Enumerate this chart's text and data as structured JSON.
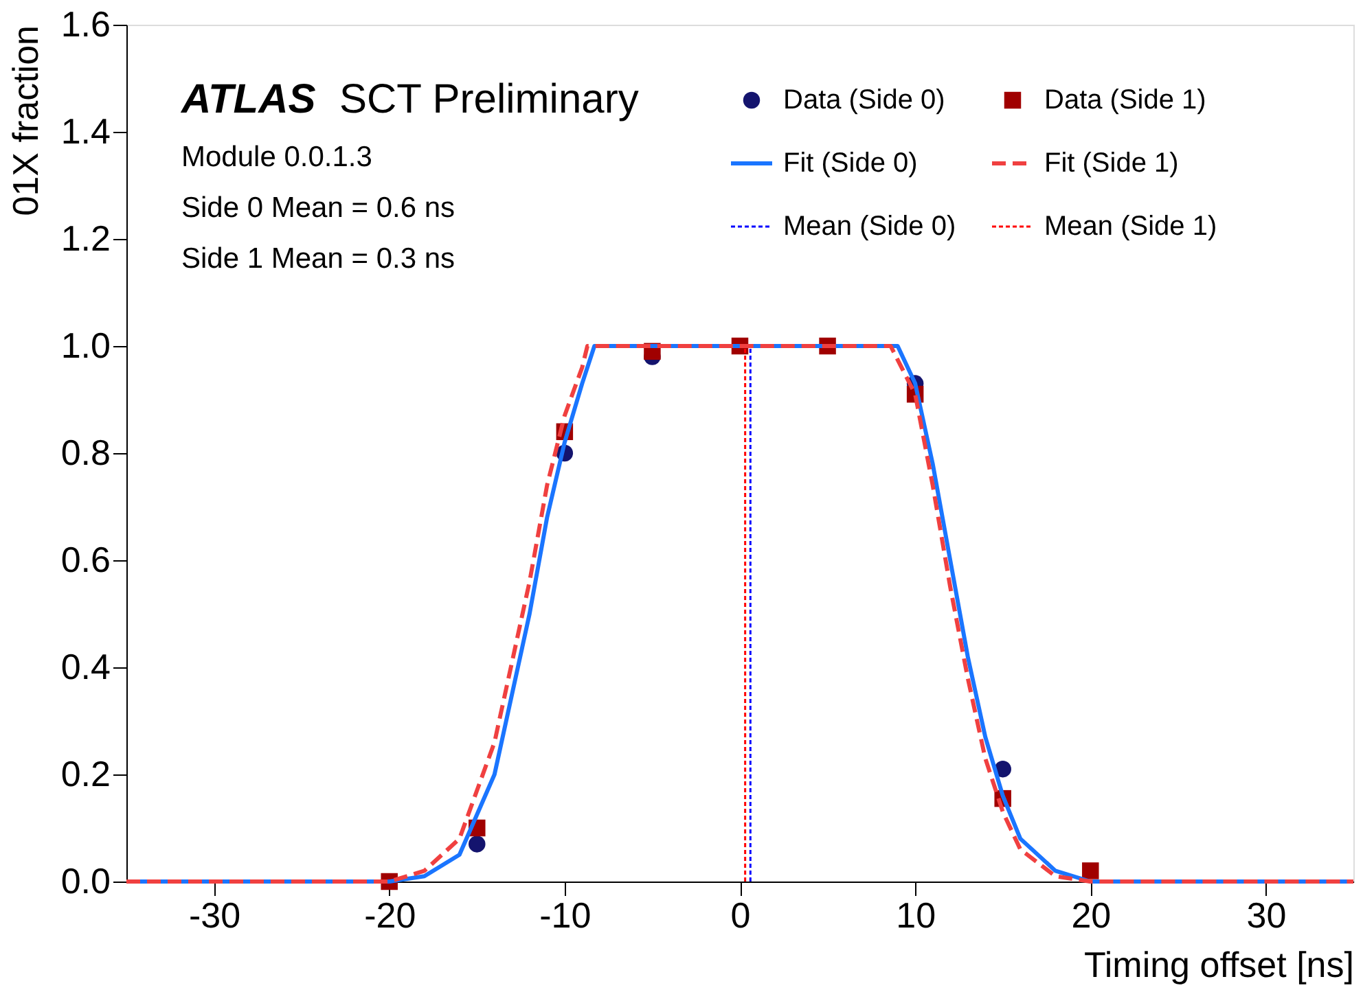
{
  "chart_data": {
    "type": "scatter",
    "xlabel": "Timing offset [ns]",
    "ylabel": "01X fraction",
    "annotations": [
      "ATLAS",
      "SCT Preliminary",
      "Module 0.0.1.3",
      "Side 0 Mean = 0.6 ns",
      "Side 1 Mean = 0.3 ns"
    ],
    "xlim": [
      -35,
      35
    ],
    "xticks": [
      -30,
      -20,
      -10,
      0,
      10,
      20,
      30
    ],
    "ylim": [
      0,
      1.6
    ],
    "yticks": [
      {
        "value": 0,
        "label": "0.0"
      },
      {
        "value": 0.2,
        "label": "0.2"
      },
      {
        "value": 0.4,
        "label": "0.4"
      },
      {
        "value": 0.6,
        "label": "0.6"
      },
      {
        "value": 0.8,
        "label": "0.8"
      },
      {
        "value": 1.0,
        "label": "1.0"
      },
      {
        "value": 1.2,
        "label": "1.2"
      },
      {
        "value": 1.4,
        "label": "1.4"
      },
      {
        "value": 1.6,
        "label": "1.6"
      }
    ],
    "grid": false,
    "legend": "top right",
    "series": [
      {
        "name": "Data (Side 0)",
        "marker": "circle",
        "color": "#14146e",
        "x": [
          -15,
          -10,
          -5,
          10,
          15
        ],
        "values": [
          0.07,
          0.8,
          0.98,
          0.93,
          0.21
        ]
      },
      {
        "name": "Data (Side 1)",
        "marker": "square",
        "color": "#a00000",
        "x": [
          -20,
          -15,
          -10,
          -5,
          0,
          5,
          10,
          15,
          20
        ],
        "values": [
          0.0,
          0.1,
          0.84,
          0.99,
          1.0,
          1.0,
          0.91,
          0.155,
          0.02
        ]
      },
      {
        "name": "Fit (Side 0)",
        "type": "line",
        "line_style": "solid",
        "color": "#1a75ff",
        "x": [
          -35,
          -20,
          -18,
          -16,
          -14,
          -12,
          -11,
          -10,
          -9,
          -8.3,
          9.0,
          10,
          11,
          12,
          13,
          14,
          15,
          16,
          18,
          20,
          35
        ],
        "values": [
          0,
          0,
          0.01,
          0.05,
          0.2,
          0.5,
          0.68,
          0.82,
          0.93,
          1.0,
          1.0,
          0.93,
          0.78,
          0.6,
          0.42,
          0.27,
          0.16,
          0.08,
          0.02,
          0,
          0
        ]
      },
      {
        "name": "Fit (Side 1)",
        "type": "line",
        "line_style": "dashed",
        "color": "#f04040",
        "x": [
          -35,
          -20,
          -18,
          -16,
          -14,
          -12,
          -11,
          -10,
          -9,
          -8.7,
          8.6,
          10,
          11,
          12,
          13,
          14,
          15,
          16,
          18,
          20,
          35
        ],
        "values": [
          0,
          0,
          0.02,
          0.08,
          0.26,
          0.56,
          0.74,
          0.87,
          0.96,
          1.0,
          1.0,
          0.91,
          0.74,
          0.55,
          0.38,
          0.23,
          0.13,
          0.06,
          0.01,
          0,
          0
        ]
      },
      {
        "name": "Mean (Side 0)",
        "type": "line",
        "line_style": "dotted",
        "color": "#0000ff",
        "x": [
          0.6,
          0.6
        ],
        "values": [
          0,
          1.0
        ]
      },
      {
        "name": "Mean (Side 1)",
        "type": "line",
        "line_style": "dotted",
        "color": "#ff0000",
        "x": [
          0.3,
          0.3
        ],
        "values": [
          0,
          1.0
        ]
      }
    ]
  }
}
